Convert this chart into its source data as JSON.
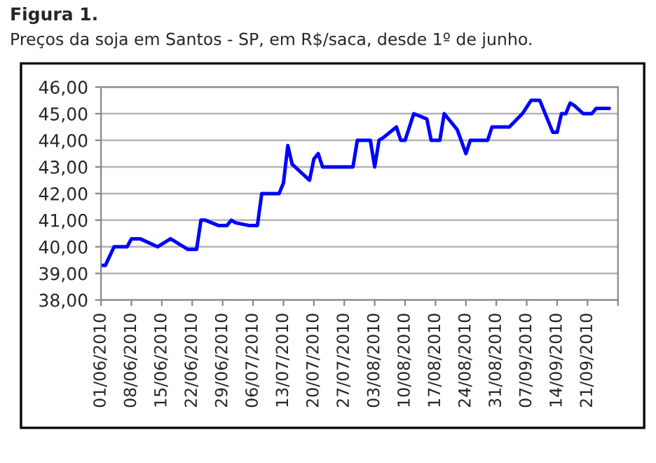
{
  "chart_data": {
    "type": "line",
    "title": "Figura 1.",
    "subtitle": "Preços da soja em Santos - SP, em R$/saca, desde 1º de junho.",
    "x": [
      "2010-06-01",
      "2010-06-02",
      "2010-06-04",
      "2010-06-07",
      "2010-06-08",
      "2010-06-10",
      "2010-06-14",
      "2010-06-17",
      "2010-06-18",
      "2010-06-21",
      "2010-06-23",
      "2010-06-24",
      "2010-06-25",
      "2010-06-28",
      "2010-06-30",
      "2010-07-01",
      "2010-07-02",
      "2010-07-05",
      "2010-07-07",
      "2010-07-08",
      "2010-07-12",
      "2010-07-13",
      "2010-07-14",
      "2010-07-15",
      "2010-07-19",
      "2010-07-20",
      "2010-07-21",
      "2010-07-22",
      "2010-07-29",
      "2010-07-30",
      "2010-08-02",
      "2010-08-03",
      "2010-08-04",
      "2010-08-05",
      "2010-08-08",
      "2010-08-09",
      "2010-08-10",
      "2010-08-12",
      "2010-08-15",
      "2010-08-16",
      "2010-08-18",
      "2010-08-19",
      "2010-08-22",
      "2010-08-24",
      "2010-08-25",
      "2010-08-29",
      "2010-08-30",
      "2010-09-03",
      "2010-09-06",
      "2010-09-08",
      "2010-09-10",
      "2010-09-13",
      "2010-09-14",
      "2010-09-15",
      "2010-09-16",
      "2010-09-17",
      "2010-09-18",
      "2010-09-20",
      "2010-09-22",
      "2010-09-23",
      "2010-09-26"
    ],
    "series": [
      {
        "color": "#0000ff",
        "values": [
          39.3,
          39.3,
          40.0,
          40.0,
          40.3,
          40.3,
          40.0,
          40.3,
          40.2,
          39.9,
          39.9,
          41.0,
          41.0,
          40.8,
          40.8,
          41.0,
          40.9,
          40.8,
          40.8,
          42.0,
          42.0,
          42.4,
          43.8,
          43.1,
          42.5,
          43.3,
          43.5,
          43.0,
          43.0,
          44.0,
          44.0,
          43.0,
          44.0,
          44.1,
          44.5,
          44.0,
          44.0,
          45.0,
          44.8,
          44.0,
          44.0,
          45.0,
          44.4,
          43.5,
          44.0,
          44.0,
          44.5,
          44.5,
          45.0,
          45.5,
          45.5,
          44.3,
          44.3,
          45.0,
          45.0,
          45.4,
          45.3,
          45.0,
          45.0,
          45.2,
          45.2
        ]
      }
    ],
    "xlim": [
      "2010-06-01",
      "2010-09-28"
    ],
    "xticks": [
      {
        "value": "2010-06-01",
        "label": "01/06/2010"
      },
      {
        "value": "2010-06-08",
        "label": "08/06/2010"
      },
      {
        "value": "2010-06-15",
        "label": "15/06/2010"
      },
      {
        "value": "2010-06-22",
        "label": "22/06/2010"
      },
      {
        "value": "2010-06-29",
        "label": "29/06/2010"
      },
      {
        "value": "2010-07-06",
        "label": "06/07/2010"
      },
      {
        "value": "2010-07-13",
        "label": "13/07/2010"
      },
      {
        "value": "2010-07-20",
        "label": "20/07/2010"
      },
      {
        "value": "2010-07-27",
        "label": "27/07/2010"
      },
      {
        "value": "2010-08-03",
        "label": "03/08/2010"
      },
      {
        "value": "2010-08-10",
        "label": "10/08/2010"
      },
      {
        "value": "2010-08-17",
        "label": "17/08/2010"
      },
      {
        "value": "2010-08-24",
        "label": "24/08/2010"
      },
      {
        "value": "2010-08-31",
        "label": "31/08/2010"
      },
      {
        "value": "2010-09-07",
        "label": "07/09/2010"
      },
      {
        "value": "2010-09-14",
        "label": "14/09/2010"
      },
      {
        "value": "2010-09-21",
        "label": "21/09/2010"
      },
      {
        "value": "2010-09-28",
        "label": null
      }
    ],
    "ylim": [
      38,
      46
    ],
    "yticks": [
      {
        "value": 38,
        "label": "38,00"
      },
      {
        "value": 39,
        "label": "39,00"
      },
      {
        "value": 40,
        "label": "40,00"
      },
      {
        "value": 41,
        "label": "41,00"
      },
      {
        "value": 42,
        "label": "42,00"
      },
      {
        "value": 43,
        "label": "43,00"
      },
      {
        "value": 44,
        "label": "44,00"
      },
      {
        "value": 45,
        "label": "45,00"
      },
      {
        "value": 46,
        "label": "46,00"
      }
    ],
    "grid": "y",
    "legend": false,
    "marker": "none",
    "line_style": "solid"
  }
}
